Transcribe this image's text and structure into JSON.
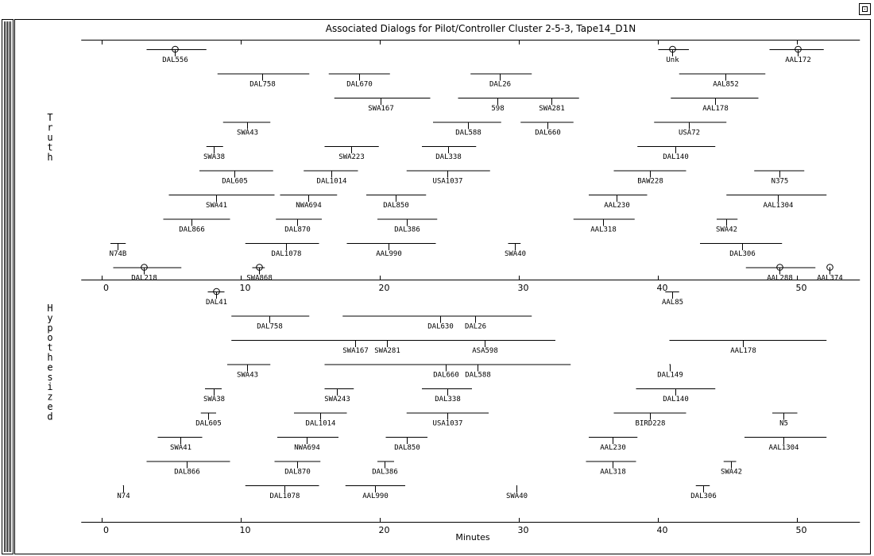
{
  "window": {
    "title": "Associated Dialogs for Pilot/Controller Cluster 2-5-3, Tape14_D1N",
    "button_icon": "window-maximize-icon"
  },
  "chart_data": {
    "type": "timeline",
    "title": "Associated Dialogs for Pilot/Controller Cluster 2-5-3, Tape14_D1N",
    "xlabel": "Minutes",
    "xlim": [
      -1.5,
      54.5
    ],
    "xticks": [
      0,
      10,
      20,
      30,
      40,
      50
    ],
    "panels": [
      {
        "name": "Truth",
        "axis_ticks": [
          0,
          10,
          20,
          30,
          40,
          50
        ],
        "bars": [
          {
            "label": "DAL556",
            "start": 3.2,
            "end": 7.5,
            "lane": 0,
            "mark": 5.2,
            "circle": true
          },
          {
            "label": "Unk",
            "start": 40.0,
            "end": 42.2,
            "lane": 0,
            "mark": 41.0,
            "circle": true
          },
          {
            "label": "AAL172",
            "start": 48.0,
            "end": 51.9,
            "lane": 0,
            "mark": 50.0,
            "circle": true
          },
          {
            "label": "DAL758",
            "start": 8.3,
            "end": 14.9,
            "lane": 1,
            "mark": 11.5
          },
          {
            "label": "DAL670",
            "start": 16.3,
            "end": 20.7,
            "lane": 1,
            "mark": 18.5
          },
          {
            "label": "DAL26",
            "start": 26.5,
            "end": 30.9,
            "lane": 1,
            "mark": 28.6
          },
          {
            "label": "AAL852",
            "start": 41.5,
            "end": 47.7,
            "lane": 1,
            "mark": 44.8
          },
          {
            "label": "SWA167",
            "start": 16.7,
            "end": 23.6,
            "lane": 2,
            "mark": 20.0
          },
          {
            "label": "598",
            "start": 25.6,
            "end": 34.3,
            "lane": 2,
            "mark": 28.4
          },
          {
            "label": "SWA281",
            "start": 25.6,
            "end": 34.3,
            "lane": 2,
            "mark": 32.3,
            "hide_line": true
          },
          {
            "label": "AAL178",
            "start": 40.9,
            "end": 47.2,
            "lane": 2,
            "mark": 44.1
          },
          {
            "label": "SWA43",
            "start": 8.7,
            "end": 12.1,
            "lane": 3,
            "mark": 10.4
          },
          {
            "label": "DAL588",
            "start": 23.8,
            "end": 28.7,
            "lane": 3,
            "mark": 26.3
          },
          {
            "label": "DAL660",
            "start": 30.1,
            "end": 33.9,
            "lane": 3,
            "mark": 32.0
          },
          {
            "label": "USA72",
            "start": 39.7,
            "end": 44.9,
            "lane": 3,
            "mark": 42.2
          },
          {
            "label": "SWA38",
            "start": 7.5,
            "end": 8.7,
            "lane": 4,
            "mark": 8.0
          },
          {
            "label": "SWA223",
            "start": 16.0,
            "end": 19.9,
            "lane": 4,
            "mark": 17.9
          },
          {
            "label": "DAL338",
            "start": 23.0,
            "end": 26.9,
            "lane": 4,
            "mark": 24.9
          },
          {
            "label": "DAL140",
            "start": 38.5,
            "end": 44.1,
            "lane": 4,
            "mark": 41.2
          },
          {
            "label": "DAL605",
            "start": 7.0,
            "end": 12.3,
            "lane": 5,
            "mark": 9.5
          },
          {
            "label": "DAL1014",
            "start": 14.5,
            "end": 18.4,
            "lane": 5,
            "mark": 16.5
          },
          {
            "label": "USA1037",
            "start": 21.9,
            "end": 27.9,
            "lane": 5,
            "mark": 24.8
          },
          {
            "label": "BAW228",
            "start": 36.8,
            "end": 42.0,
            "lane": 5,
            "mark": 39.4
          },
          {
            "label": "N375",
            "start": 46.9,
            "end": 50.5,
            "lane": 5,
            "mark": 48.7
          },
          {
            "label": "SWA41",
            "start": 4.8,
            "end": 12.4,
            "lane": 6,
            "mark": 8.2
          },
          {
            "label": "NWA694",
            "start": 12.8,
            "end": 16.9,
            "lane": 6,
            "mark": 14.8
          },
          {
            "label": "DAL850",
            "start": 19.0,
            "end": 23.3,
            "lane": 6,
            "mark": 21.1
          },
          {
            "label": "AAL230",
            "start": 35.0,
            "end": 39.2,
            "lane": 6,
            "mark": 37.0
          },
          {
            "label": "AAL1304",
            "start": 44.9,
            "end": 52.1,
            "lane": 6,
            "mark": 48.6
          },
          {
            "label": "DAL866",
            "start": 4.4,
            "end": 9.2,
            "lane": 7,
            "mark": 6.4
          },
          {
            "label": "DAL870",
            "start": 12.5,
            "end": 15.8,
            "lane": 7,
            "mark": 14.0
          },
          {
            "label": "DAL386",
            "start": 19.8,
            "end": 24.1,
            "lane": 7,
            "mark": 21.9
          },
          {
            "label": "AAL318",
            "start": 33.9,
            "end": 38.3,
            "lane": 7,
            "mark": 36.0
          },
          {
            "label": "SWA42",
            "start": 44.2,
            "end": 45.7,
            "lane": 7,
            "mark": 44.9
          },
          {
            "label": "N74B",
            "start": 0.6,
            "end": 1.7,
            "lane": 8,
            "mark": 1.1
          },
          {
            "label": "DAL1078",
            "start": 10.3,
            "end": 15.6,
            "lane": 8,
            "mark": 13.2
          },
          {
            "label": "AAL990",
            "start": 17.6,
            "end": 24.0,
            "lane": 8,
            "mark": 20.6
          },
          {
            "label": "SWA40",
            "start": 29.2,
            "end": 30.1,
            "lane": 8,
            "mark": 29.7
          },
          {
            "label": "DAL306",
            "start": 43.0,
            "end": 48.9,
            "lane": 8,
            "mark": 46.0
          },
          {
            "label": "DAL218",
            "start": 0.8,
            "end": 5.7,
            "lane": 9,
            "mark": 3.0,
            "circle": true
          },
          {
            "label": "SWA868",
            "start": 10.8,
            "end": 11.7,
            "lane": 9,
            "mark": 11.3,
            "circle": true
          },
          {
            "label": "AAL288",
            "start": 46.3,
            "end": 51.3,
            "lane": 9,
            "mark": 48.7,
            "circle": true
          },
          {
            "label": "AAL374",
            "start": 52.3,
            "end": 52.3,
            "lane": 9,
            "mark": 52.3,
            "circle": true
          }
        ]
      },
      {
        "name": "Hypothesized",
        "axis_ticks": [
          0,
          10,
          20,
          30,
          40,
          50
        ],
        "bars": [
          {
            "label": "DAL41",
            "start": 7.6,
            "end": 8.8,
            "lane": 0,
            "mark": 8.2,
            "circle": true
          },
          {
            "label": "AAL85",
            "start": 40.5,
            "end": 41.5,
            "lane": 0,
            "mark": 41.0
          },
          {
            "label": "DAL758",
            "start": 9.3,
            "end": 14.9,
            "lane": 1,
            "mark": 12.0
          },
          {
            "label": "DAL630",
            "start": 17.3,
            "end": 30.9,
            "lane": 1,
            "mark": 24.3
          },
          {
            "label": "DAL26",
            "start": 17.3,
            "end": 30.9,
            "lane": 1,
            "mark": 26.8,
            "hide_line": true
          },
          {
            "label": "SWA167",
            "start": 9.3,
            "end": 32.6,
            "lane": 2,
            "mark": 18.2
          },
          {
            "label": "SWA281",
            "start": 9.3,
            "end": 32.6,
            "lane": 2,
            "mark": 20.5,
            "hide_line": true
          },
          {
            "label": "ASA598",
            "start": 9.3,
            "end": 32.6,
            "lane": 2,
            "mark": 27.5,
            "hide_line": true
          },
          {
            "label": "AAL178",
            "start": 40.8,
            "end": 52.1,
            "lane": 2,
            "mark": 46.1
          },
          {
            "label": "SWA43",
            "start": 9.0,
            "end": 12.1,
            "lane": 3,
            "mark": 10.4
          },
          {
            "label": "DAL660",
            "start": 16.0,
            "end": 33.7,
            "lane": 3,
            "mark": 24.7
          },
          {
            "label": "DAL588",
            "start": 16.0,
            "end": 33.7,
            "lane": 3,
            "mark": 27.0,
            "hide_line": true
          },
          {
            "label": "DAL149",
            "start": 40.8,
            "end": 40.8,
            "lane": 3,
            "mark": 40.8
          },
          {
            "label": "SWA38",
            "start": 7.4,
            "end": 8.6,
            "lane": 4,
            "mark": 8.0
          },
          {
            "label": "SWA243",
            "start": 16.0,
            "end": 18.1,
            "lane": 4,
            "mark": 16.9
          },
          {
            "label": "DAL338",
            "start": 23.0,
            "end": 26.6,
            "lane": 4,
            "mark": 24.8
          },
          {
            "label": "DAL140",
            "start": 38.4,
            "end": 44.1,
            "lane": 4,
            "mark": 41.2
          },
          {
            "label": "DAL605",
            "start": 7.1,
            "end": 8.2,
            "lane": 5,
            "mark": 7.6
          },
          {
            "label": "DAL1014",
            "start": 13.8,
            "end": 17.6,
            "lane": 5,
            "mark": 15.7
          },
          {
            "label": "USA1037",
            "start": 21.9,
            "end": 27.8,
            "lane": 5,
            "mark": 24.8
          },
          {
            "label": "BIRD228",
            "start": 36.8,
            "end": 42.0,
            "lane": 5,
            "mark": 39.4
          },
          {
            "label": "N5",
            "start": 48.2,
            "end": 50.0,
            "lane": 5,
            "mark": 49.0
          },
          {
            "label": "SWA41",
            "start": 4.0,
            "end": 7.2,
            "lane": 6,
            "mark": 5.6
          },
          {
            "label": "NWA694",
            "start": 12.6,
            "end": 17.0,
            "lane": 6,
            "mark": 14.7
          },
          {
            "label": "DAL850",
            "start": 20.4,
            "end": 23.4,
            "lane": 6,
            "mark": 21.9
          },
          {
            "label": "AAL230",
            "start": 35.0,
            "end": 38.5,
            "lane": 6,
            "mark": 36.7
          },
          {
            "label": "AAL1304",
            "start": 46.2,
            "end": 52.1,
            "lane": 6,
            "mark": 49.0
          },
          {
            "label": "DAL866",
            "start": 3.2,
            "end": 9.2,
            "lane": 7,
            "mark": 6.1
          },
          {
            "label": "DAL870",
            "start": 12.4,
            "end": 15.7,
            "lane": 7,
            "mark": 14.0
          },
          {
            "label": "DAL386",
            "start": 19.8,
            "end": 21.0,
            "lane": 7,
            "mark": 20.3
          },
          {
            "label": "AAL318",
            "start": 34.8,
            "end": 38.4,
            "lane": 7,
            "mark": 36.7
          },
          {
            "label": "SWA42",
            "start": 44.7,
            "end": 45.6,
            "lane": 7,
            "mark": 45.2
          },
          {
            "label": "N74",
            "start": 1.5,
            "end": 1.5,
            "lane": 8,
            "mark": 1.5
          },
          {
            "label": "DAL1078",
            "start": 10.3,
            "end": 15.6,
            "lane": 8,
            "mark": 13.1
          },
          {
            "label": "AAL990",
            "start": 17.5,
            "end": 21.8,
            "lane": 8,
            "mark": 19.6
          },
          {
            "label": "SWA40",
            "start": 29.8,
            "end": 29.8,
            "lane": 8,
            "mark": 29.8
          },
          {
            "label": "DAL306",
            "start": 42.7,
            "end": 43.7,
            "lane": 8,
            "mark": 43.2
          }
        ]
      }
    ]
  }
}
